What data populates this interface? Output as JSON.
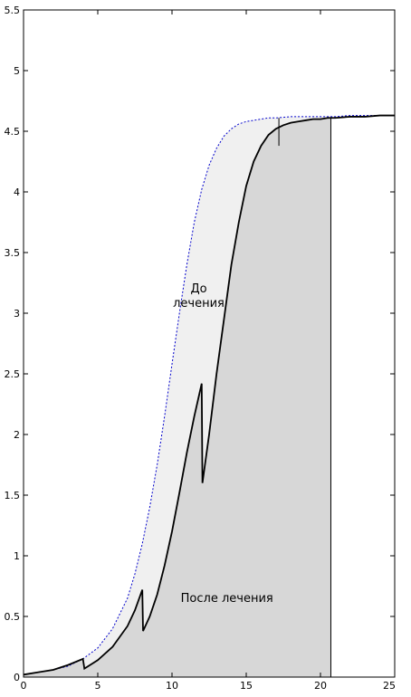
{
  "chart_data": {
    "type": "area",
    "title": "",
    "xlabel": "",
    "ylabel": "",
    "xlim": [
      0,
      25
    ],
    "ylim": [
      0,
      5.5
    ],
    "grid": false,
    "x_ticks": [
      "0",
      "5",
      "10",
      "15",
      "20",
      "25"
    ],
    "y_ticks": [
      "0",
      "0.5",
      "1",
      "1.5",
      "2",
      "2.5",
      "3",
      "3.5",
      "4",
      "4.5",
      "5",
      "5.5"
    ],
    "annotations": [
      {
        "lines": [
          "До",
          "лечения"
        ],
        "x": 11.8,
        "y": 3.17
      },
      {
        "lines": [
          "После лечения"
        ],
        "x": 13.7,
        "y": 0.62
      }
    ],
    "series": [
      {
        "style": "dashed",
        "color": "#0000cc",
        "x": [
          0,
          1,
          2,
          3,
          4,
          5,
          6,
          7,
          7.5,
          8,
          8.5,
          9,
          9.5,
          10,
          10.5,
          11,
          11.5,
          12,
          12.5,
          13,
          13.5,
          14,
          14.5,
          15,
          15.5,
          16,
          16.5,
          17,
          18,
          19,
          20,
          21,
          22,
          23,
          24,
          25
        ],
        "y": [
          0.02,
          0.04,
          0.06,
          0.09,
          0.15,
          0.24,
          0.4,
          0.65,
          0.85,
          1.1,
          1.4,
          1.75,
          2.15,
          2.58,
          3.0,
          3.4,
          3.75,
          4.02,
          4.22,
          4.36,
          4.46,
          4.52,
          4.56,
          4.58,
          4.59,
          4.6,
          4.61,
          4.61,
          4.62,
          4.62,
          4.62,
          4.62,
          4.63,
          4.63,
          4.63,
          4.63
        ]
      },
      {
        "style": "solid",
        "color": "#000000",
        "x": [
          0,
          1,
          2,
          3,
          4,
          4.1,
          5,
          6,
          7,
          7.5,
          8,
          8.05,
          8.5,
          9,
          9.5,
          10,
          10.5,
          11,
          11.5,
          12,
          12.05,
          12.5,
          13,
          13.5,
          14,
          14.5,
          15,
          15.5,
          16,
          16.5,
          17,
          17.5,
          18,
          18.5,
          19,
          19.5,
          20,
          20.5,
          21,
          22,
          23,
          24,
          25
        ],
        "y": [
          0.02,
          0.04,
          0.06,
          0.1,
          0.15,
          0.07,
          0.14,
          0.25,
          0.42,
          0.55,
          0.72,
          0.38,
          0.5,
          0.68,
          0.92,
          1.2,
          1.52,
          1.85,
          2.15,
          2.42,
          1.6,
          2.0,
          2.5,
          2.95,
          3.4,
          3.75,
          4.05,
          4.25,
          4.38,
          4.47,
          4.52,
          4.55,
          4.57,
          4.58,
          4.59,
          4.6,
          4.6,
          4.61,
          4.61,
          4.62,
          4.62,
          4.63,
          4.63
        ]
      }
    ],
    "verticals": [
      {
        "x": 17.2,
        "from": 4.38,
        "to": 4.61
      },
      {
        "x": 20.7,
        "from": 0,
        "to": 4.61
      }
    ],
    "colors": {
      "before_fill": "#f0f0f0",
      "after_fill": "#d7d7d7",
      "axis": "#000000"
    }
  }
}
